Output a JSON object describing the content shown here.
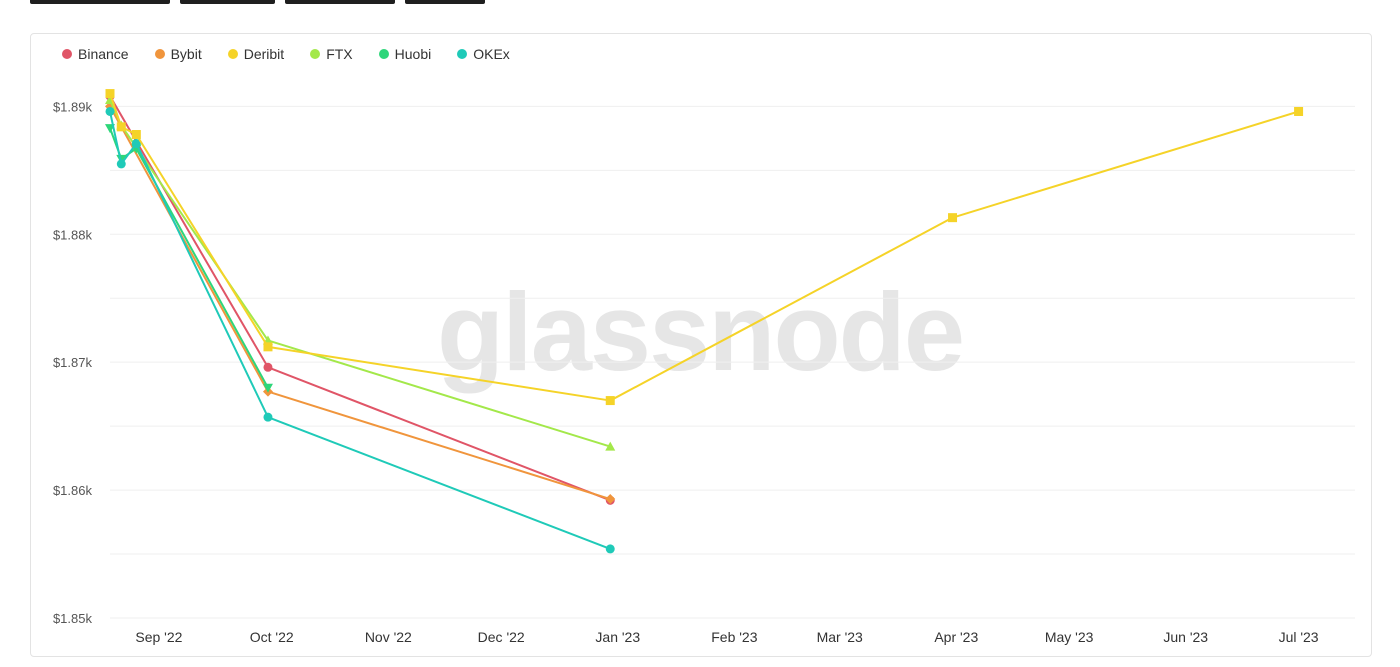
{
  "chart_data": {
    "type": "line",
    "title": "",
    "watermark": "glassnode",
    "ylim": [
      1.85,
      1.893
    ],
    "y_ticks": [
      {
        "value": 1.85,
        "label": "$1.85k"
      },
      {
        "value": 1.86,
        "label": "$1.86k"
      },
      {
        "value": 1.87,
        "label": "$1.87k"
      },
      {
        "value": 1.88,
        "label": "$1.88k"
      },
      {
        "value": 1.89,
        "label": "$1.89k"
      }
    ],
    "x_range": [
      "2022-08-19",
      "2023-07-16"
    ],
    "x_ticks": [
      {
        "date": "2022-09-01",
        "label": "Sep '22"
      },
      {
        "date": "2022-10-01",
        "label": "Oct '22"
      },
      {
        "date": "2022-11-01",
        "label": "Nov '22"
      },
      {
        "date": "2022-12-01",
        "label": "Dec '22"
      },
      {
        "date": "2023-01-01",
        "label": "Jan '23"
      },
      {
        "date": "2023-02-01",
        "label": "Feb '23"
      },
      {
        "date": "2023-03-01",
        "label": "Mar '23"
      },
      {
        "date": "2023-04-01",
        "label": "Apr '23"
      },
      {
        "date": "2023-05-01",
        "label": "May '23"
      },
      {
        "date": "2023-06-01",
        "label": "Jun '23"
      },
      {
        "date": "2023-07-01",
        "label": "Jul '23"
      }
    ],
    "grid": true,
    "legend_position": "top-left",
    "series": [
      {
        "name": "Binance",
        "color": "#e05567",
        "marker": "circle",
        "points": [
          [
            "2022-08-19",
            1.8908
          ],
          [
            "2022-09-30",
            1.8696
          ],
          [
            "2022-12-30",
            1.8592
          ]
        ]
      },
      {
        "name": "Bybit",
        "color": "#f0953c",
        "marker": "diamond",
        "points": [
          [
            "2022-08-19",
            1.89
          ],
          [
            "2022-09-30",
            1.8677
          ],
          [
            "2022-12-30",
            1.8593
          ]
        ]
      },
      {
        "name": "FTX",
        "color": "#a3e84a",
        "marker": "triangle",
        "points": [
          [
            "2022-08-19",
            1.8905
          ],
          [
            "2022-08-22",
            1.8885
          ],
          [
            "2022-08-26",
            1.8868
          ],
          [
            "2022-09-30",
            1.8717
          ],
          [
            "2022-12-30",
            1.8634
          ]
        ]
      },
      {
        "name": "Huobi",
        "color": "#2ed67a",
        "marker": "triangle-down",
        "points": [
          [
            "2022-08-19",
            1.8883
          ],
          [
            "2022-08-22",
            1.8859
          ],
          [
            "2022-08-26",
            1.8867
          ],
          [
            "2022-09-30",
            1.868
          ]
        ]
      },
      {
        "name": "OKEx",
        "color": "#1fcab8",
        "marker": "circle",
        "points": [
          [
            "2022-08-19",
            1.8896
          ],
          [
            "2022-08-22",
            1.8855
          ],
          [
            "2022-08-26",
            1.8871
          ],
          [
            "2022-09-30",
            1.8657
          ],
          [
            "2022-12-30",
            1.8554
          ]
        ]
      },
      {
        "name": "Deribit",
        "color": "#f5d328",
        "marker": "square",
        "points": [
          [
            "2022-08-19",
            1.891
          ],
          [
            "2022-08-22",
            1.8884
          ],
          [
            "2022-08-26",
            1.8878
          ],
          [
            "2022-09-30",
            1.8712
          ],
          [
            "2022-12-30",
            1.867
          ],
          [
            "2023-03-31",
            1.8813
          ],
          [
            "2023-07-01",
            1.8896
          ]
        ]
      }
    ],
    "legend": [
      {
        "name": "Binance",
        "color": "#e05567"
      },
      {
        "name": "Bybit",
        "color": "#f0953c"
      },
      {
        "name": "Deribit",
        "color": "#f5d328"
      },
      {
        "name": "FTX",
        "color": "#a3e84a"
      },
      {
        "name": "Huobi",
        "color": "#2ed67a"
      },
      {
        "name": "OKEx",
        "color": "#1fcab8"
      }
    ]
  }
}
